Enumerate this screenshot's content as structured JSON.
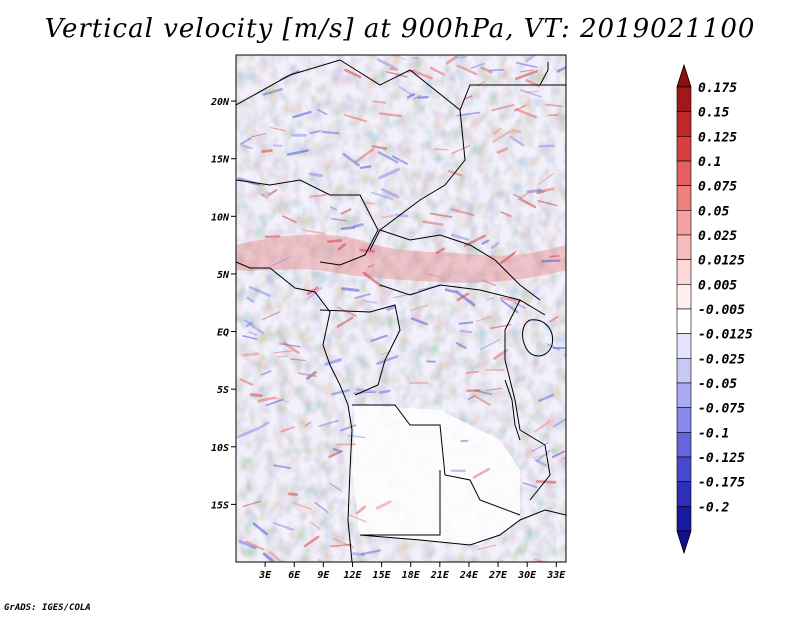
{
  "title": "Vertical velocity [m/s] at 900hPa, VT: 2019021100",
  "credit": "GrADS: IGES/COLA",
  "map": {
    "variable": "Vertical velocity",
    "units": "m/s",
    "level": "900hPa",
    "valid_time": "2019021100",
    "lon_range": [
      0,
      34
    ],
    "lat_range": [
      -20,
      24
    ],
    "lat_ticks": [
      {
        "lat": 20,
        "label": "20N"
      },
      {
        "lat": 15,
        "label": "15N"
      },
      {
        "lat": 10,
        "label": "10N"
      },
      {
        "lat": 5,
        "label": "5N"
      },
      {
        "lat": 0,
        "label": "EQ"
      },
      {
        "lat": -5,
        "label": "5S"
      },
      {
        "lat": -10,
        "label": "10S"
      },
      {
        "lat": -15,
        "label": "15S"
      }
    ],
    "lon_ticks": [
      {
        "lon": 3,
        "label": "3E"
      },
      {
        "lon": 6,
        "label": "6E"
      },
      {
        "lon": 9,
        "label": "9E"
      },
      {
        "lon": 12,
        "label": "12E"
      },
      {
        "lon": 15,
        "label": "15E"
      },
      {
        "lon": 18,
        "label": "18E"
      },
      {
        "lon": 21,
        "label": "21E"
      },
      {
        "lon": 24,
        "label": "24E"
      },
      {
        "lon": 27,
        "label": "27E"
      },
      {
        "lon": 30,
        "label": "30E"
      },
      {
        "lon": 33,
        "label": "33E"
      }
    ]
  },
  "colorbar": {
    "levels": [
      {
        "label": "0.175",
        "color": "#a01818"
      },
      {
        "label": "0.15",
        "color": "#c02828"
      },
      {
        "label": "0.125",
        "color": "#d84040"
      },
      {
        "label": "0.1",
        "color": "#e66060"
      },
      {
        "label": "0.075",
        "color": "#ee8080"
      },
      {
        "label": "0.05",
        "color": "#f4a0a0"
      },
      {
        "label": "0.025",
        "color": "#f8bcbc"
      },
      {
        "label": "0.0125",
        "color": "#fcd8d8"
      },
      {
        "label": "0.005",
        "color": "#feeeee"
      },
      {
        "label": "-0.005",
        "color": "#ffffff"
      },
      {
        "label": "-0.0125",
        "color": "#e4e4fc"
      },
      {
        "label": "-0.025",
        "color": "#c8c8f8"
      },
      {
        "label": "-0.05",
        "color": "#aaaaf2"
      },
      {
        "label": "-0.075",
        "color": "#8888ea"
      },
      {
        "label": "-0.1",
        "color": "#6666dc"
      },
      {
        "label": "-0.125",
        "color": "#4848cc"
      },
      {
        "label": "-0.175",
        "color": "#2e2eb8"
      },
      {
        "label": "-0.2",
        "color": "#1a1a9e"
      }
    ],
    "top_color": "#8c1010",
    "bottom_color": "#10108c"
  }
}
